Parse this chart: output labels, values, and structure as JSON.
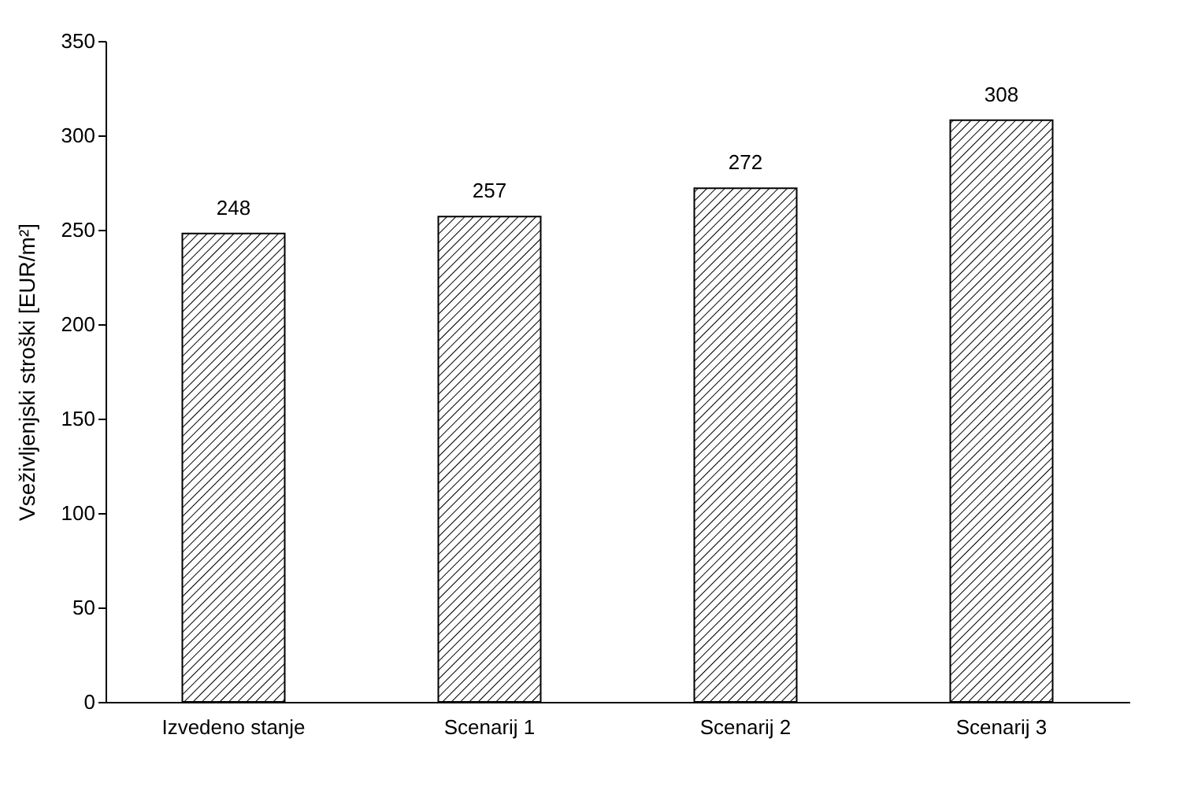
{
  "chart_data": {
    "type": "bar",
    "ylabel": "Vseživljenjski  stroški  [EUR/m²]",
    "categories": [
      "Izvedeno stanje",
      "Scenarij 1",
      "Scenarij 2",
      "Scenarij 3"
    ],
    "values": [
      248,
      257,
      272,
      308
    ],
    "color": "#000000",
    "ylim": [
      0,
      350
    ],
    "yticks": [
      0,
      50,
      100,
      150,
      200,
      250,
      300,
      350
    ],
    "grid": false,
    "data_labels": true
  }
}
